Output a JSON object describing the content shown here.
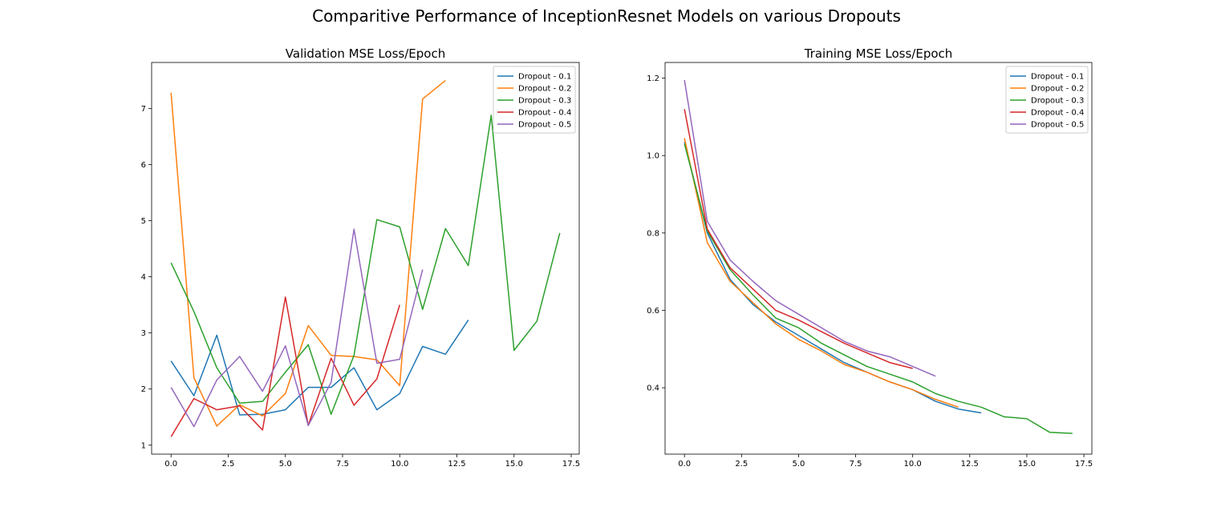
{
  "figure": {
    "suptitle": "Comparitive Performance of InceptionResnet Models on various Dropouts"
  },
  "colors": {
    "Dropout - 0.1": "#1f77b4",
    "Dropout - 0.2": "#ff7f0e",
    "Dropout - 0.3": "#2ca02c",
    "Dropout - 0.4": "#d62728",
    "Dropout - 0.5": "#9467bd"
  },
  "chart_data": [
    {
      "type": "line",
      "title": "Validation MSE Loss/Epoch",
      "xlabel": "",
      "ylabel": "",
      "xlim": [
        -0.85,
        17.85
      ],
      "ylim": [
        0.84,
        7.82
      ],
      "xticks": [
        0.0,
        2.5,
        5.0,
        7.5,
        10.0,
        12.5,
        15.0,
        17.5
      ],
      "xtick_labels": [
        "0.0",
        "2.5",
        "5.0",
        "7.5",
        "10.0",
        "12.5",
        "15.0",
        "17.5"
      ],
      "yticks": [
        1,
        2,
        3,
        4,
        5,
        6,
        7
      ],
      "ytick_labels": [
        "1",
        "2",
        "3",
        "4",
        "5",
        "6",
        "7"
      ],
      "grid": false,
      "legend_position": "top-right",
      "series": [
        {
          "name": "Dropout - 0.1",
          "x": [
            0,
            1,
            2,
            3,
            4,
            5,
            6,
            7,
            8,
            9,
            10,
            11,
            12,
            13
          ],
          "y": [
            2.5,
            1.88,
            2.96,
            1.54,
            1.55,
            1.63,
            2.03,
            2.03,
            2.38,
            1.63,
            1.92,
            2.76,
            2.62,
            3.23
          ]
        },
        {
          "name": "Dropout - 0.2",
          "x": [
            0,
            1,
            2,
            3,
            4,
            5,
            6,
            7,
            8,
            9,
            10,
            11,
            12
          ],
          "y": [
            7.28,
            2.2,
            1.34,
            1.72,
            1.52,
            1.92,
            3.13,
            2.6,
            2.58,
            2.52,
            2.06,
            7.17,
            7.5
          ]
        },
        {
          "name": "Dropout - 0.3",
          "x": [
            0,
            1,
            2,
            3,
            4,
            5,
            6,
            7,
            8,
            9,
            10,
            11,
            12,
            13,
            14,
            15,
            16,
            17
          ],
          "y": [
            4.25,
            3.38,
            2.38,
            1.75,
            1.78,
            2.3,
            2.79,
            1.55,
            2.6,
            5.02,
            4.89,
            3.42,
            4.86,
            4.2,
            6.88,
            2.69,
            3.21,
            4.78
          ]
        },
        {
          "name": "Dropout - 0.4",
          "x": [
            0,
            1,
            2,
            3,
            4,
            5,
            6,
            7,
            8,
            9,
            10
          ],
          "y": [
            1.15,
            1.83,
            1.63,
            1.7,
            1.27,
            3.64,
            1.35,
            2.55,
            1.71,
            2.18,
            3.5
          ]
        },
        {
          "name": "Dropout - 0.5",
          "x": [
            0,
            1,
            2,
            3,
            4,
            5,
            6,
            7,
            8,
            9,
            10,
            11
          ],
          "y": [
            2.03,
            1.33,
            2.16,
            2.58,
            1.96,
            2.77,
            1.35,
            2.12,
            4.85,
            2.46,
            2.53,
            4.13
          ]
        }
      ]
    },
    {
      "type": "line",
      "title": "Training MSE Loss/Epoch",
      "xlabel": "",
      "ylabel": "",
      "xlim": [
        -0.85,
        17.85
      ],
      "ylim": [
        0.2285,
        1.2405
      ],
      "xticks": [
        0.0,
        2.5,
        5.0,
        7.5,
        10.0,
        12.5,
        15.0,
        17.5
      ],
      "xtick_labels": [
        "0.0",
        "2.5",
        "5.0",
        "7.5",
        "10.0",
        "12.5",
        "15.0",
        "17.5"
      ],
      "yticks": [
        0.4,
        0.6,
        0.8,
        1.0,
        1.2
      ],
      "ytick_labels": [
        "0.4",
        "0.6",
        "0.8",
        "1.0",
        "1.2"
      ],
      "grid": false,
      "legend_position": "top-right",
      "series": [
        {
          "name": "Dropout - 0.1",
          "x": [
            0,
            1,
            2,
            3,
            4,
            5,
            6,
            7,
            8,
            9,
            10,
            11,
            12,
            13
          ],
          "y": [
            1.035,
            0.8,
            0.68,
            0.615,
            0.57,
            0.535,
            0.5,
            0.465,
            0.44,
            0.415,
            0.395,
            0.365,
            0.345,
            0.335
          ]
        },
        {
          "name": "Dropout - 0.2",
          "x": [
            0,
            1,
            2,
            3,
            4,
            5,
            6,
            7,
            8,
            9,
            10,
            11,
            12
          ],
          "y": [
            1.045,
            0.775,
            0.675,
            0.62,
            0.565,
            0.525,
            0.495,
            0.46,
            0.44,
            0.415,
            0.395,
            0.37,
            0.35
          ]
        },
        {
          "name": "Dropout - 0.3",
          "x": [
            0,
            1,
            2,
            3,
            4,
            5,
            6,
            7,
            8,
            9,
            10,
            11,
            12,
            13,
            14,
            15,
            16,
            17
          ],
          "y": [
            1.03,
            0.805,
            0.705,
            0.64,
            0.58,
            0.555,
            0.515,
            0.485,
            0.455,
            0.435,
            0.415,
            0.385,
            0.365,
            0.35,
            0.325,
            0.32,
            0.285,
            0.282
          ]
        },
        {
          "name": "Dropout - 0.4",
          "x": [
            0,
            1,
            2,
            3,
            4,
            5,
            6,
            7,
            8,
            9,
            10
          ],
          "y": [
            1.12,
            0.81,
            0.71,
            0.655,
            0.6,
            0.575,
            0.545,
            0.515,
            0.49,
            0.465,
            0.45
          ]
        },
        {
          "name": "Dropout - 0.5",
          "x": [
            0,
            1,
            2,
            3,
            4,
            5,
            6,
            7,
            8,
            9,
            10,
            11
          ],
          "y": [
            1.195,
            0.83,
            0.73,
            0.675,
            0.625,
            0.59,
            0.555,
            0.52,
            0.495,
            0.48,
            0.455,
            0.43
          ]
        }
      ]
    }
  ]
}
